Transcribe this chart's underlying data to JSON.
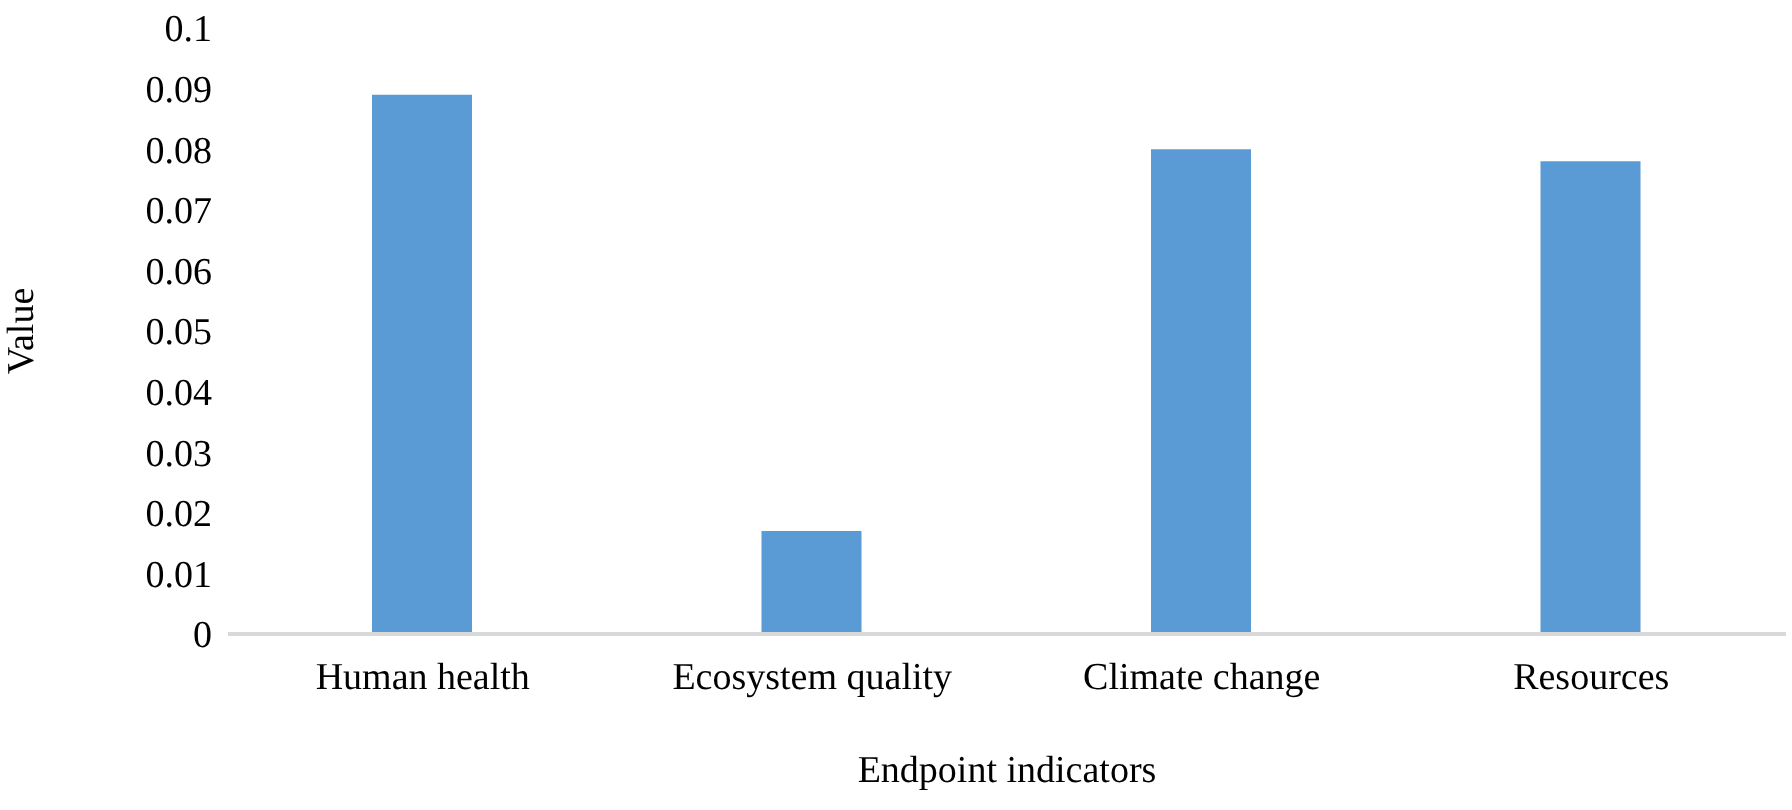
{
  "chart_data": {
    "type": "bar",
    "xlabel": "Endpoint indicators",
    "ylabel": "Value",
    "categories": [
      "Human health",
      "Ecosystem quality",
      "Climate change",
      "Resources"
    ],
    "values": [
      0.089,
      0.017,
      0.08,
      0.078
    ],
    "color": "#5b9bd5",
    "ylim": [
      0,
      0.1
    ],
    "yticks": [
      0,
      0.01,
      0.02,
      0.03,
      0.04,
      0.05,
      0.06,
      0.07,
      0.08,
      0.09,
      0.1
    ],
    "grid": false,
    "legend": false
  }
}
